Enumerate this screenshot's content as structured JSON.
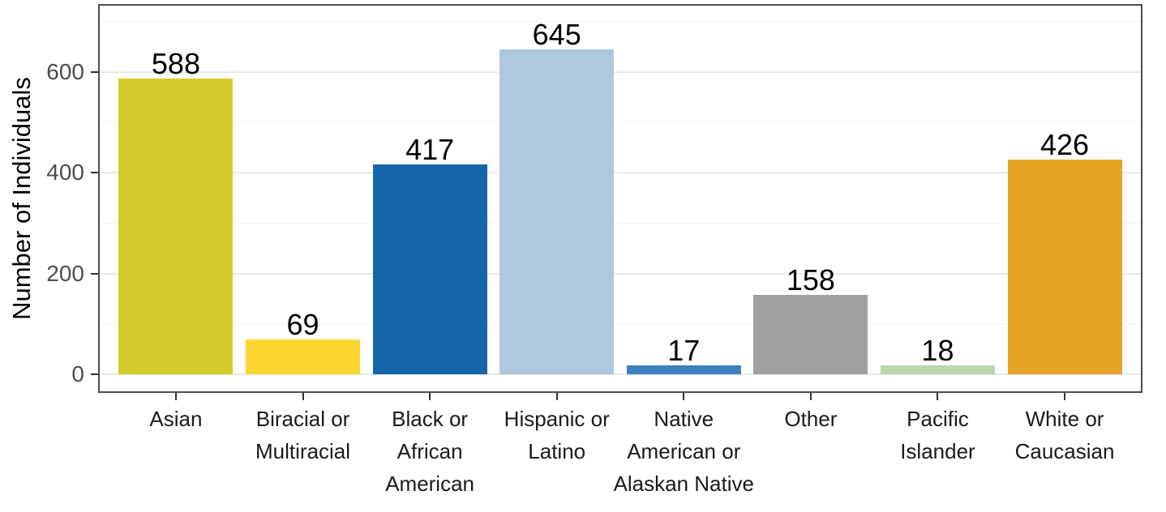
{
  "chart_data": {
    "type": "bar",
    "title": "",
    "xlabel": "",
    "ylabel": "Number of Individuals",
    "categories": [
      "Asian",
      "Biracial or Multiracial",
      "Black or African American",
      "Hispanic or Latino",
      "Native American or Alaskan Native",
      "Other",
      "Pacific Islander",
      "White or Caucasian"
    ],
    "categories_display_lines": [
      [
        "Asian"
      ],
      [
        "Biracial or",
        "Multiracial"
      ],
      [
        "Black or",
        "African",
        "American"
      ],
      [
        "Hispanic or",
        "Latino"
      ],
      [
        "Native",
        "American or",
        "Alaskan Native"
      ],
      [
        "Other"
      ],
      [
        "Pacific",
        "Islander"
      ],
      [
        "White or",
        "Caucasian"
      ]
    ],
    "values": [
      588,
      69,
      417,
      645,
      17,
      158,
      18,
      426
    ],
    "bar_colors": [
      "#d3cb2c",
      "#fdd531",
      "#1565ab",
      "#aec7de",
      "#3c80c0",
      "#a0a0a0",
      "#b9d6ac",
      "#e3a426"
    ],
    "ylim": [
      0,
      737
    ],
    "yticks_major": [
      0,
      200,
      400,
      600
    ],
    "yticks_minor": [
      100,
      300,
      500,
      700
    ],
    "grid": true,
    "legend": false,
    "value_labels_shown": true,
    "colors": {
      "panel_border": "#4d4d4d",
      "axis_tick": "#333333",
      "ytick_label": "#4d4d4d",
      "xtick_label": "#1a1a1a",
      "grid_major": "#e9e9e9",
      "grid_minor": "#f2f2f2",
      "background": "#ffffff"
    }
  }
}
